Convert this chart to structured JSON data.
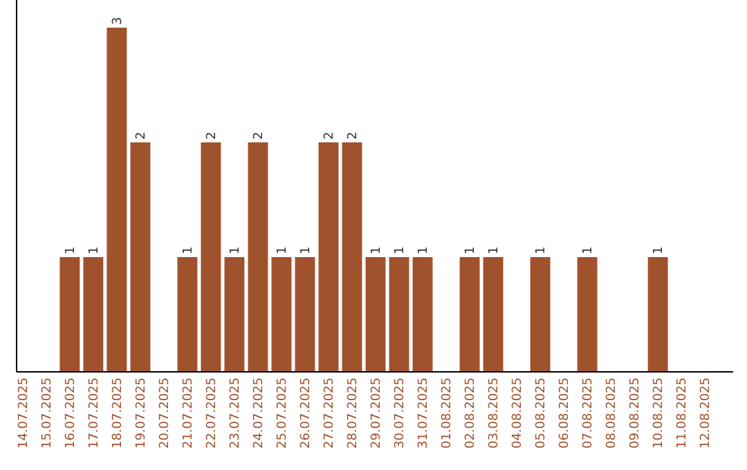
{
  "chart_data": {
    "type": "bar",
    "categories": [
      "14.07.2025",
      "15.07.2025",
      "16.07.2025",
      "17.07.2025",
      "18.07.2025",
      "19.07.2025",
      "20.07.2025",
      "21.07.2025",
      "22.07.2025",
      "23.07.2025",
      "24.07.2025",
      "25.07.2025",
      "26.07.2025",
      "27.07.2025",
      "28.07.2025",
      "29.07.2025",
      "30.07.2025",
      "31.07.2025",
      "01.08.2025",
      "02.08.2025",
      "03.08.2025",
      "04.08.2025",
      "05.08.2025",
      "06.08.2025",
      "07.08.2025",
      "08.08.2025",
      "09.08.2025",
      "10.08.2025",
      "11.08.2025",
      "12.08.2025"
    ],
    "values": [
      0,
      0,
      1,
      1,
      3,
      2,
      0,
      1,
      2,
      1,
      2,
      1,
      1,
      2,
      2,
      1,
      1,
      1,
      0,
      1,
      1,
      0,
      1,
      0,
      1,
      0,
      0,
      1,
      0,
      0
    ],
    "value_labels": [
      null,
      null,
      "1",
      "1",
      "3",
      "2",
      null,
      "1",
      "2",
      "1",
      "2",
      "1",
      "1",
      "2",
      "2",
      "1",
      "1",
      "1",
      null,
      "1",
      "1",
      null,
      "1",
      null,
      "1",
      null,
      null,
      "1",
      null,
      null
    ],
    "color": "#a0522d"
  }
}
